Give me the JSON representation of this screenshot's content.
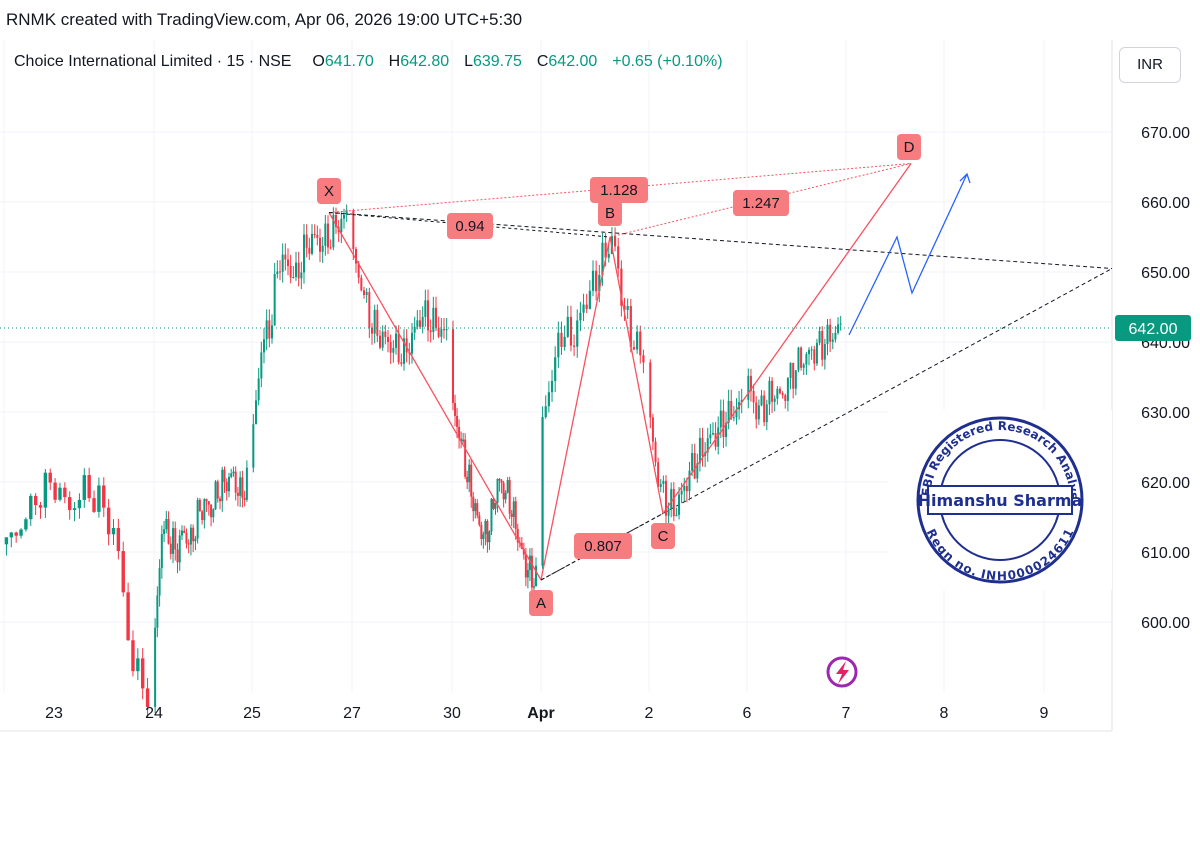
{
  "header": {
    "attribution": "RNMK created with TradingView.com, Apr 06, 2026 19:00 UTC+5:30",
    "symbol_line": "Choice International Limited · 15 · NSE",
    "open_label": "O",
    "open": "641.70",
    "high_label": "H",
    "high": "642.80",
    "low_label": "L",
    "low": "639.75",
    "close_label": "C",
    "close": "642.00",
    "change": "+0.65 (+0.10%)",
    "currency": "INR"
  },
  "colors": {
    "up": "#089981",
    "down": "#f23645",
    "pattern": "#f7525f",
    "label_bg": "#f77c80",
    "projection": "#2962ff",
    "trend": "#131722",
    "price_line": "#089981",
    "stamp": "#1f2f8f"
  },
  "chart_data": {
    "type": "candlestick",
    "ylim": [
      590,
      676
    ],
    "y_ticks": [
      "600.00",
      "610.00",
      "620.00",
      "630.00",
      "640.00",
      "650.00",
      "660.00",
      "670.00"
    ],
    "x_ticks": [
      "23",
      "24",
      "25",
      "27",
      "30",
      "Apr",
      "2",
      "6",
      "7",
      "8",
      "9"
    ],
    "current_price": 642.0,
    "current_price_label": "642.00",
    "harmonic_points": [
      {
        "label": "X",
        "value": 658.5
      },
      {
        "label": "A",
        "value": 606.0
      },
      {
        "label": "B",
        "value": 655.0
      },
      {
        "label": "C",
        "value": 615.5
      },
      {
        "label": "D",
        "value": 665.5
      }
    ],
    "ratios": [
      "0.94",
      "1.128",
      "1.247",
      "0.807"
    ],
    "projection_path": [
      641,
      655,
      647,
      664
    ],
    "session_closes": [
      {
        "session": "23",
        "values": [
          611,
          614,
          618,
          620,
          616,
          619,
          617,
          612,
          594,
          590
        ]
      },
      {
        "session": "24",
        "values": [
          598,
          614,
          612,
          610,
          613,
          611,
          615,
          617,
          616,
          619,
          620,
          621,
          618,
          620
        ]
      },
      {
        "session": "25",
        "values": [
          627,
          640,
          642,
          652,
          651,
          649,
          653,
          655,
          654,
          655,
          657,
          658
        ]
      },
      {
        "session": "27",
        "values": [
          652,
          648,
          643,
          641,
          640,
          639,
          638,
          641,
          644,
          643,
          642,
          641
        ]
      },
      {
        "session": "30",
        "values": [
          630,
          627,
          622,
          618,
          614,
          612,
          615,
          620,
          619,
          617,
          613,
          609,
          607,
          606
        ]
      },
      {
        "session": "Apr",
        "values": [
          628,
          636,
          642,
          640,
          645,
          648,
          652,
          655,
          645,
          640,
          638
        ]
      },
      {
        "session": "2",
        "values": [
          628,
          620,
          617,
          616,
          619,
          622,
          624,
          626,
          627,
          629,
          630,
          631
        ]
      },
      {
        "session": "6",
        "values": [
          634,
          630,
          631,
          633,
          632,
          635,
          637,
          638,
          639,
          640,
          641,
          642
        ]
      }
    ]
  },
  "stamp": {
    "top_text": "SEBI Registered Research Analyst",
    "name": "Himanshu Sharma",
    "bottom_text": "Regn no. INH000024611"
  }
}
